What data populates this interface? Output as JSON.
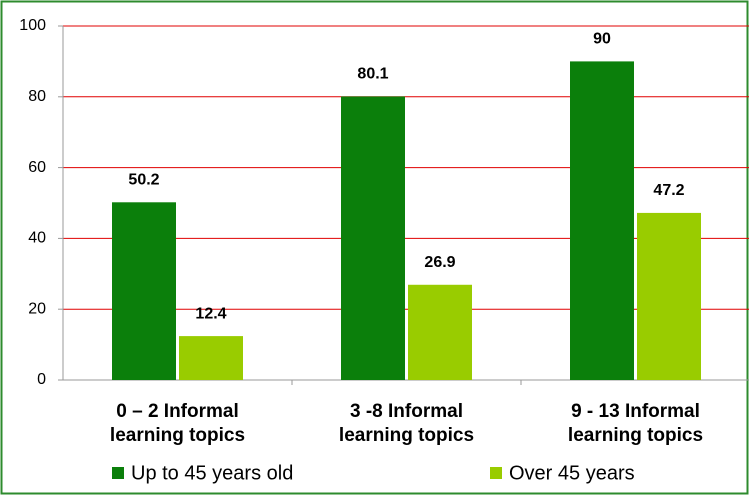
{
  "chart_data": {
    "type": "bar",
    "categories": [
      "0 – 2 Informal learning topics",
      "3 -8 Informal learning topics",
      "9 - 13 Informal learning topics"
    ],
    "series": [
      {
        "name": "Up to 45 years old",
        "color": "#0b7f0b",
        "values": [
          50.2,
          80.1,
          90
        ]
      },
      {
        "name": "Over 45 years",
        "color": "#99cc00",
        "values": [
          12.4,
          26.9,
          47.2
        ]
      }
    ],
    "ylim": [
      0,
      100
    ],
    "yticks": [
      0,
      20,
      40,
      60,
      80,
      100
    ],
    "grid": true,
    "grid_color": "#e00000",
    "legend": "bottom"
  }
}
